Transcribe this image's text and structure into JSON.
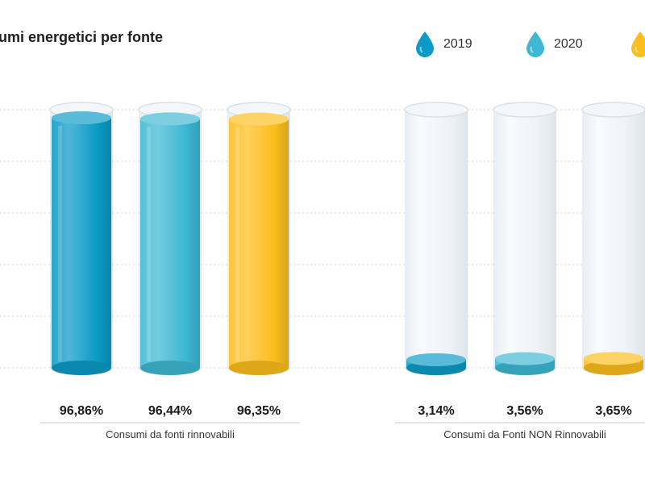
{
  "chart_data": {
    "type": "bar",
    "title": "sumi energetici per fonte",
    "categories": [
      "Consumi da fonti rinnovabili",
      "Consumi da Fonti NON Rinnovabili"
    ],
    "series": [
      {
        "name": "2019",
        "color": "#0b9bc6",
        "values": [
          96.86,
          3.14
        ],
        "labels": [
          "96,86%",
          "3,14%"
        ]
      },
      {
        "name": "2020",
        "color": "#3db8d3",
        "values": [
          96.44,
          3.56
        ],
        "labels": [
          "96,44%",
          "3,56%"
        ]
      },
      {
        "name": "",
        "color": "#fcbe1c",
        "values": [
          96.35,
          3.65
        ],
        "labels": [
          "96,35%",
          "3,65%"
        ]
      }
    ],
    "unit": "%",
    "ylim": [
      0,
      100
    ],
    "grid": true,
    "legend": "top-right"
  }
}
